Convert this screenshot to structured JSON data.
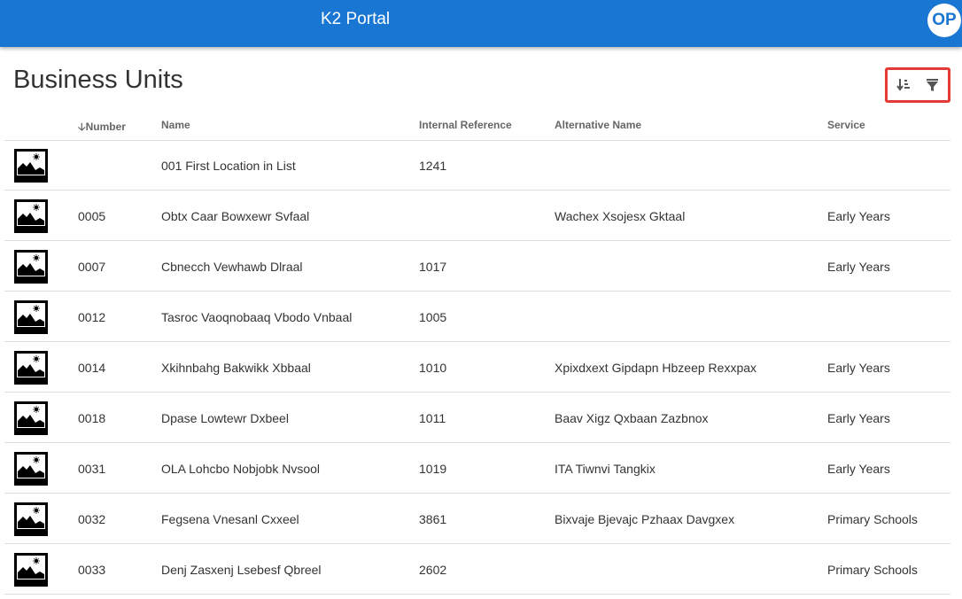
{
  "header": {
    "title": "K2 Portal",
    "avatar_initials": "OP",
    "color": "#1976d2"
  },
  "page": {
    "title": "Business Units"
  },
  "toolbar": {
    "icons": [
      "sort-icon",
      "filter-icon"
    ]
  },
  "table": {
    "columns": {
      "number": "Number",
      "name": "Name",
      "internal_reference": "Internal Reference",
      "alternative_name": "Alternative Name",
      "service": "Service"
    },
    "sort": {
      "column": "Number",
      "direction": "descending-arrow"
    },
    "rows": [
      {
        "number": "",
        "name": "001 First Location in List",
        "ref": "1241",
        "alt": "",
        "service": ""
      },
      {
        "number": "0005",
        "name": "Obtx Caar Bowxewr Svfaal",
        "ref": "",
        "alt": "Wachex Xsojesx Gktaal",
        "service": "Early Years"
      },
      {
        "number": "0007",
        "name": "Cbnecch Vewhawb Dlraal",
        "ref": "1017",
        "alt": "",
        "service": "Early Years"
      },
      {
        "number": "0012",
        "name": "Tasroc Vaoqnobaaq Vbodo Vnbaal",
        "ref": "1005",
        "alt": "",
        "service": ""
      },
      {
        "number": "0014",
        "name": "Xkihnbahg Bakwikk Xbbaal",
        "ref": "1010",
        "alt": "Xpixdxext Gipdapn Hbzeep Rexxpax",
        "service": "Early Years"
      },
      {
        "number": "0018",
        "name": "Dpase Lowtewr Dxbeel",
        "ref": "1011",
        "alt": "Baav Xigz Qxbaan Zazbnox",
        "service": "Early Years"
      },
      {
        "number": "0031",
        "name": "OLA Lohcbo Nobjobk Nvsool",
        "ref": "1019",
        "alt": "ITA Tiwnvi Tangkix",
        "service": "Early Years"
      },
      {
        "number": "0032",
        "name": "Fegsena Vnesanl Cxxeel",
        "ref": "3861",
        "alt": "Bixvaje Bjevajc Pzhaax Davgxex",
        "service": "Primary Schools"
      },
      {
        "number": "0033",
        "name": "Denj Zasxenj Lsebesf Qbreel",
        "ref": "2602",
        "alt": "",
        "service": "Primary Schools"
      }
    ]
  }
}
